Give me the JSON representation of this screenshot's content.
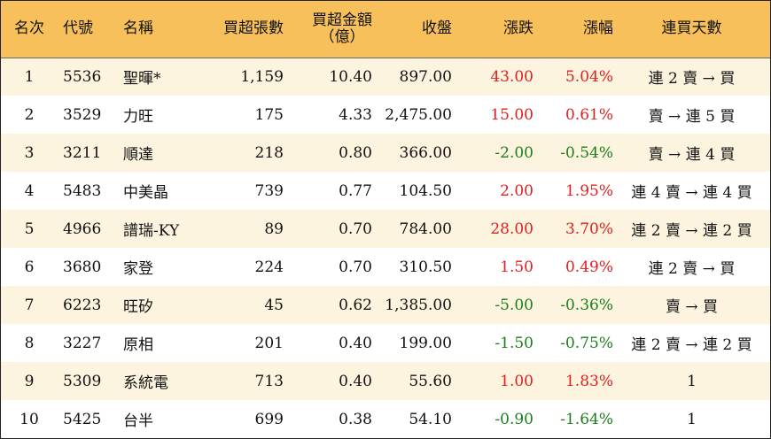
{
  "headers": {
    "rank": "名次",
    "code": "代號",
    "name": "名稱",
    "buy_lots": "買超張數",
    "buy_amount_line1": "買超金額",
    "buy_amount_line2": "（億）",
    "close": "收盤",
    "change": "漲跌",
    "change_pct": "漲幅",
    "days": "連買天數"
  },
  "colors": {
    "header_bg": "#f7c05a",
    "stripe_bg": "#fdf4df",
    "up": "#e02020",
    "down": "#1a7f1a"
  },
  "rows": [
    {
      "rank": "1",
      "code": "5536",
      "name": "聖暉*",
      "lots": "1,159",
      "amount": "10.40",
      "close": "897.00",
      "change": "43.00",
      "pct": "5.04%",
      "dir": "up",
      "days": "連 2 賣 → 買"
    },
    {
      "rank": "2",
      "code": "3529",
      "name": "力旺",
      "lots": "175",
      "amount": "4.33",
      "close": "2,475.00",
      "change": "15.00",
      "pct": "0.61%",
      "dir": "up",
      "days": "賣 → 連 5 買"
    },
    {
      "rank": "3",
      "code": "3211",
      "name": "順達",
      "lots": "218",
      "amount": "0.80",
      "close": "366.00",
      "change": "-2.00",
      "pct": "-0.54%",
      "dir": "down",
      "days": "賣 → 連 4 買"
    },
    {
      "rank": "4",
      "code": "5483",
      "name": "中美晶",
      "lots": "739",
      "amount": "0.77",
      "close": "104.50",
      "change": "2.00",
      "pct": "1.95%",
      "dir": "up",
      "days": "連 4 賣 → 連 4 買"
    },
    {
      "rank": "5",
      "code": "4966",
      "name": "譜瑞-KY",
      "lots": "89",
      "amount": "0.70",
      "close": "784.00",
      "change": "28.00",
      "pct": "3.70%",
      "dir": "up",
      "days": "連 2 賣 → 連 2 買"
    },
    {
      "rank": "6",
      "code": "3680",
      "name": "家登",
      "lots": "224",
      "amount": "0.70",
      "close": "310.50",
      "change": "1.50",
      "pct": "0.49%",
      "dir": "up",
      "days": "連 2 賣 → 買"
    },
    {
      "rank": "7",
      "code": "6223",
      "name": "旺矽",
      "lots": "45",
      "amount": "0.62",
      "close": "1,385.00",
      "change": "-5.00",
      "pct": "-0.36%",
      "dir": "down",
      "days": "賣 → 買"
    },
    {
      "rank": "8",
      "code": "3227",
      "name": "原相",
      "lots": "201",
      "amount": "0.40",
      "close": "199.00",
      "change": "-1.50",
      "pct": "-0.75%",
      "dir": "down",
      "days": "連 2 賣 → 連 2 買"
    },
    {
      "rank": "9",
      "code": "5309",
      "name": "系統電",
      "lots": "713",
      "amount": "0.40",
      "close": "55.60",
      "change": "1.00",
      "pct": "1.83%",
      "dir": "up",
      "days": "1"
    },
    {
      "rank": "10",
      "code": "5425",
      "name": "台半",
      "lots": "699",
      "amount": "0.38",
      "close": "54.10",
      "change": "-0.90",
      "pct": "-1.64%",
      "dir": "down",
      "days": "1"
    }
  ]
}
